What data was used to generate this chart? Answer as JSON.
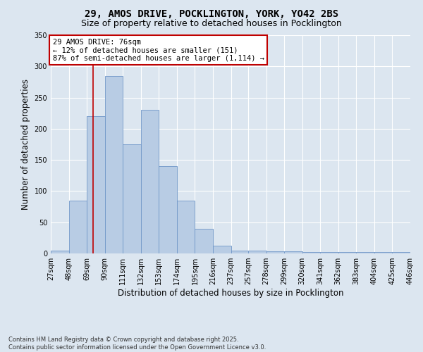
{
  "title_line1": "29, AMOS DRIVE, POCKLINGTON, YORK, YO42 2BS",
  "title_line2": "Size of property relative to detached houses in Pocklington",
  "xlabel": "Distribution of detached houses by size in Pocklington",
  "ylabel": "Number of detached properties",
  "bar_values": [
    4,
    85,
    220,
    285,
    175,
    230,
    140,
    85,
    40,
    12,
    5,
    5,
    3,
    3,
    2,
    2,
    2,
    2,
    2,
    2
  ],
  "bin_edges": [
    27,
    48,
    69,
    90,
    111,
    132,
    153,
    174,
    195,
    216,
    237,
    257,
    278,
    299,
    320,
    341,
    362,
    383,
    404,
    425,
    446
  ],
  "tick_labels": [
    "27sqm",
    "48sqm",
    "69sqm",
    "90sqm",
    "111sqm",
    "132sqm",
    "153sqm",
    "174sqm",
    "195sqm",
    "216sqm",
    "237sqm",
    "257sqm",
    "278sqm",
    "299sqm",
    "320sqm",
    "341sqm",
    "362sqm",
    "383sqm",
    "404sqm",
    "425sqm",
    "446sqm"
  ],
  "bar_color": "#b8cce4",
  "bar_edge_color": "#7097c8",
  "vline_x": 76,
  "vline_color": "#c00000",
  "ylim": [
    0,
    350
  ],
  "yticks": [
    0,
    50,
    100,
    150,
    200,
    250,
    300,
    350
  ],
  "annotation_title": "29 AMOS DRIVE: 76sqm",
  "annotation_line2": "← 12% of detached houses are smaller (151)",
  "annotation_line3": "87% of semi-detached houses are larger (1,114) →",
  "annotation_box_color": "#ffffff",
  "annotation_edge_color": "#c00000",
  "footer_line1": "Contains HM Land Registry data © Crown copyright and database right 2025.",
  "footer_line2": "Contains public sector information licensed under the Open Government Licence v3.0.",
  "background_color": "#dce6f0",
  "plot_background_color": "#dce6f0",
  "grid_color": "#ffffff",
  "title_fontsize": 10,
  "subtitle_fontsize": 9,
  "axis_label_fontsize": 8.5,
  "tick_fontsize": 7,
  "annotation_fontsize": 7.5,
  "footer_fontsize": 6
}
